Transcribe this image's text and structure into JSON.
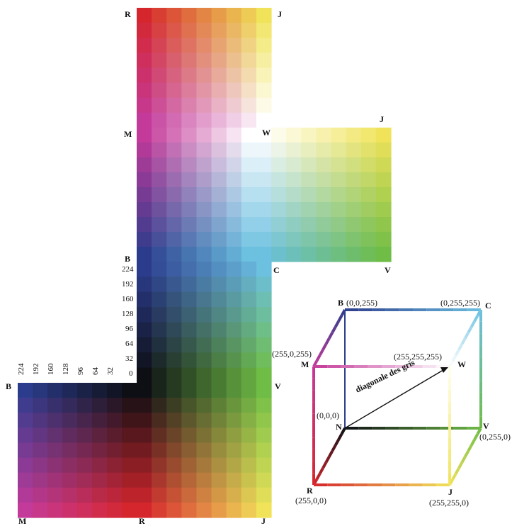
{
  "labels": {
    "R_top": "R",
    "J_top": "J",
    "M_left": "M",
    "W_mid": "W",
    "J_mid": "J",
    "B_mid": "B",
    "C_mid": "C",
    "V_mid": "V",
    "B_left": "B",
    "N_mid": "N",
    "V_right": "V",
    "M_bottom": "M",
    "R_bottom": "R",
    "J_bottom": "J"
  },
  "ticks_vertical": [
    "224",
    "192",
    "160",
    "128",
    "96",
    "64",
    "32",
    "0"
  ],
  "ticks_horizontal": [
    "224",
    "192",
    "160",
    "128",
    "96",
    "64",
    "32"
  ],
  "cube": {
    "B": "B",
    "B_rgb": "(0,0,255)",
    "C_rgb": "(0,255,255)",
    "C": "C",
    "M_rgb": "(255,0,255)",
    "M": "M",
    "W_rgb": "(255,255,255)",
    "W": "W",
    "N_rgb": "(0,0,0)",
    "N": "N",
    "V": "V",
    "V_rgb": "(0,255,0)",
    "R": "R",
    "R_rgb": "(255,0,0)",
    "J": "J",
    "J_rgb": "(255,255,0)",
    "diagonal": "diagonale des gris"
  },
  "colors": {
    "R": "#d6262d",
    "J": "#f0e35a",
    "M": "#c43a9a",
    "W": "#ffffff",
    "B": "#2c3c8c",
    "C": "#6cc0e0",
    "V": "#6fbc46",
    "N": "#0d0f14"
  }
}
